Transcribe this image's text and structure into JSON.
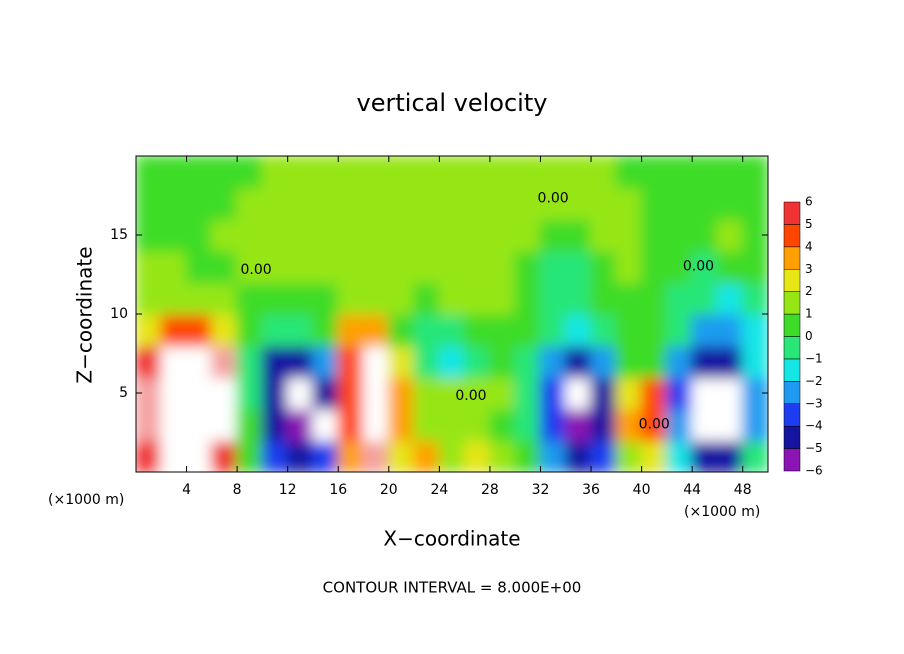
{
  "chart_data": {
    "type": "heatmap",
    "title": "vertical velocity",
    "x_label": "X−coordinate",
    "y_label": "Z−coordinate",
    "x_unit_label": "(×1000 m)",
    "y_unit_label": "(×1000 m)",
    "annotation": "CONTOUR INTERVAL = 8.000E+00",
    "xlim": [
      0,
      50
    ],
    "ylim": [
      0,
      20
    ],
    "xticks": [
      4,
      8,
      12,
      16,
      20,
      24,
      28,
      32,
      36,
      40,
      44,
      48
    ],
    "yticks": [
      5,
      10,
      15
    ],
    "x": [
      1,
      3,
      5,
      7,
      9,
      11,
      13,
      15,
      17,
      19,
      21,
      23,
      25,
      27,
      29,
      31,
      33,
      35,
      37,
      39,
      41,
      43,
      45,
      47,
      49
    ],
    "y": [
      1,
      3,
      5,
      7,
      9,
      11,
      13,
      15,
      17,
      19
    ],
    "values": [
      [
        5,
        7,
        7,
        5,
        0,
        -4,
        -5,
        -4,
        3,
        6,
        2,
        3,
        0.5,
        2,
        0.5,
        0,
        -3,
        -5,
        -4,
        1,
        2,
        -2,
        -5,
        -5,
        -1
      ],
      [
        6,
        8,
        8,
        7,
        0,
        -5,
        -6,
        -7,
        4,
        7,
        3,
        1,
        0.5,
        0.5,
        0,
        -1,
        -4,
        -6,
        -5,
        3,
        4,
        -3,
        -7,
        -7,
        -3
      ],
      [
        6,
        8,
        8,
        7,
        -1,
        -5,
        -7,
        -5,
        4,
        8,
        3,
        0.5,
        0.5,
        0.5,
        0.5,
        -1,
        -4,
        -7,
        -5,
        2,
        4,
        -4,
        -7,
        -7,
        -3
      ],
      [
        5,
        8,
        8,
        6,
        -1,
        -5,
        -5,
        -3,
        4,
        7,
        2,
        -1,
        -2,
        -1,
        0,
        -1,
        -3,
        -5,
        -3,
        0,
        0,
        -3,
        -5,
        -5,
        -2
      ],
      [
        2,
        4,
        4,
        2,
        0,
        -1,
        -1,
        0,
        3,
        3,
        0,
        -1,
        -1,
        0,
        0,
        0,
        -1,
        -2,
        -1,
        0,
        0,
        -1,
        -3,
        -3,
        -2
      ],
      [
        0.5,
        1,
        1,
        0.5,
        0.3,
        0,
        0.3,
        0.3,
        0.5,
        0.5,
        0.5,
        0.3,
        0.5,
        0.5,
        0.5,
        0,
        -0.5,
        -1,
        0,
        0,
        0,
        -0.5,
        -1,
        -1.5,
        -1
      ],
      [
        0.5,
        0.5,
        0.3,
        0.3,
        0.5,
        0.5,
        0.5,
        0.5,
        0.5,
        0.8,
        1,
        1,
        1,
        1,
        0.8,
        0,
        -0.5,
        -0.5,
        0,
        0.5,
        0,
        0,
        -0.5,
        0,
        0.3
      ],
      [
        0.3,
        0.3,
        0.3,
        0.5,
        0.5,
        0.5,
        0.5,
        0.8,
        1,
        1,
        1.2,
        1.2,
        1.2,
        1,
        0.8,
        0.5,
        0,
        0,
        0.5,
        0.5,
        0.3,
        0.3,
        0.3,
        0.5,
        0.3
      ],
      [
        0.3,
        0.3,
        0.3,
        0.3,
        0.5,
        0.5,
        0.8,
        1,
        1,
        1.2,
        1.2,
        1.2,
        1.2,
        1,
        0.8,
        0.5,
        0.5,
        0.5,
        0.5,
        0.5,
        0.3,
        0.3,
        0.3,
        0.3,
        0.3
      ],
      [
        0.3,
        0.3,
        0.3,
        0.3,
        0.3,
        0.5,
        0.5,
        0.8,
        1,
        1,
        1,
        1,
        1,
        1,
        0.8,
        0.5,
        0.5,
        0.5,
        0.5,
        0.3,
        0.3,
        0.3,
        0.3,
        0.3,
        0.3
      ]
    ],
    "contour_labels": [
      {
        "text": "0.00",
        "x": 33,
        "y": 17.3
      },
      {
        "text": "0.00",
        "x": 9.5,
        "y": 12.8
      },
      {
        "text": "0.00",
        "x": 26.5,
        "y": 4.8
      },
      {
        "text": "0.00",
        "x": 44.5,
        "y": 13
      },
      {
        "text": "0.00",
        "x": 41,
        "y": 3
      }
    ],
    "colorbar": {
      "ticks": [
        {
          "value": -6,
          "label": "−6"
        },
        {
          "value": -5,
          "label": "−5"
        },
        {
          "value": -4,
          "label": "−4"
        },
        {
          "value": -3,
          "label": "−3"
        },
        {
          "value": -2,
          "label": "−2"
        },
        {
          "value": -1,
          "label": "−1"
        },
        0,
        1,
        2,
        3,
        4,
        5,
        6
      ],
      "colors": [
        "#8c14b4",
        "#1414a0",
        "#1e3cf0",
        "#1e9bf0",
        "#14e6e6",
        "#28e678",
        "#3cdc28",
        "#96e614",
        "#e6e614",
        "#ffa000",
        "#ff4600",
        "#f03232",
        "#f4a0a0"
      ],
      "over_color": "#ffffff"
    }
  }
}
